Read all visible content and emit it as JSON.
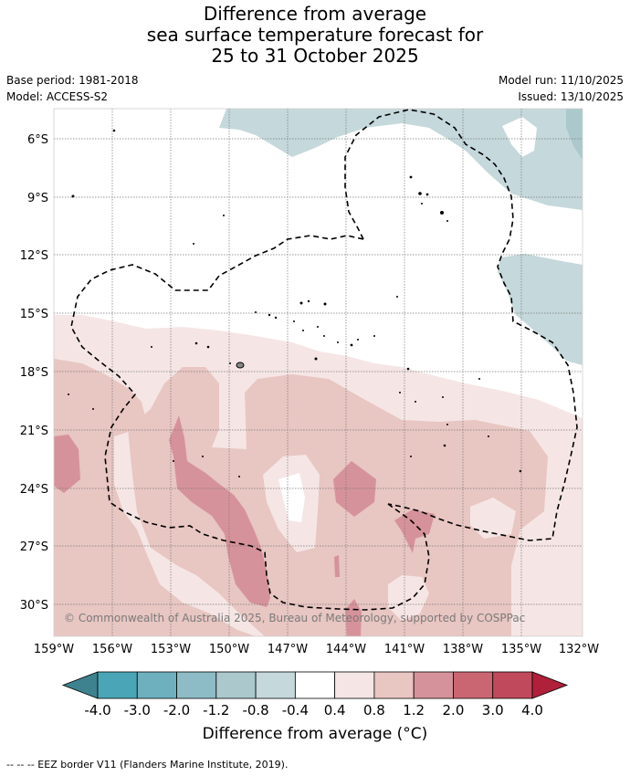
{
  "title": {
    "line1": "Difference from average",
    "line2": "sea surface temperature forecast for",
    "line3": "25 to 31 October 2025"
  },
  "meta": {
    "base_period": "Base period: 1981-2018",
    "model": "Model: ACCESS-S2",
    "model_run": "Model run: 11/10/2025",
    "issued": "Issued: 13/10/2025"
  },
  "map": {
    "copyright": "© Commonwealth of Australia 2025, Bureau of Meteorology, supported by COSPPac",
    "lat_ticks": [
      "6°S",
      "9°S",
      "12°S",
      "15°S",
      "18°S",
      "21°S",
      "24°S",
      "27°S",
      "30°S"
    ],
    "lon_ticks": [
      "159°W",
      "156°W",
      "153°W",
      "150°W",
      "147°W",
      "144°W",
      "141°W",
      "138°W",
      "135°W",
      "132°W"
    ]
  },
  "colorbar": {
    "tick_labels": [
      "-4.0",
      "-3.0",
      "-2.0",
      "-1.2",
      "-0.8",
      "-0.4",
      "0.4",
      "0.8",
      "1.2",
      "2.0",
      "3.0",
      "4.0"
    ],
    "colors": [
      "#3e8290",
      "#4aa6b6",
      "#6eb0be",
      "#8dbcc6",
      "#abc9cd",
      "#c5d8db",
      "#ffffff",
      "#f5e6e5",
      "#e8c6c2",
      "#d6929a",
      "#ca6672",
      "#c04a5c",
      "#b0203a"
    ],
    "label": "Difference from average (°C)"
  },
  "legend": {
    "eez_line": "--  --  -- EEZ border V11 (Flanders Marine Institute, 2019)."
  }
}
